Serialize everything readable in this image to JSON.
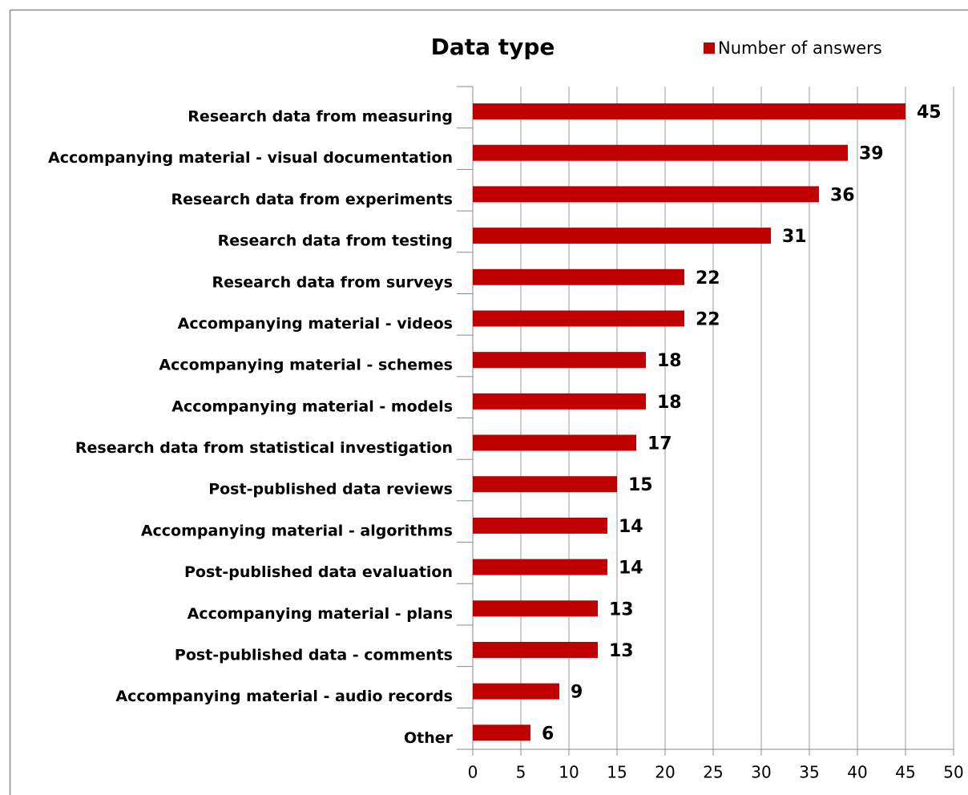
{
  "chart_data": {
    "type": "bar",
    "orientation": "horizontal",
    "title": "Data type",
    "categories": [
      "Research data from measuring",
      "Accompanying material - visual documentation",
      "Research data from experiments",
      "Research data from testing",
      "Research data from surveys",
      "Accompanying material - videos",
      "Accompanying material - schemes",
      "Accompanying material - models",
      "Research data from statistical investigation",
      "Post-published data reviews",
      "Accompanying material - algorithms",
      "Post-published data evaluation",
      "Accompanying material - plans",
      "Post-published data - comments",
      "Accompanying material - audio records",
      "Other"
    ],
    "series": [
      {
        "name": "Number of answers",
        "color": "#c00000",
        "values": [
          45,
          39,
          36,
          31,
          22,
          22,
          18,
          18,
          17,
          15,
          14,
          14,
          13,
          13,
          9,
          6
        ]
      }
    ],
    "xlim": [
      0,
      50
    ],
    "xticks": [
      0,
      5,
      10,
      15,
      20,
      25,
      30,
      35,
      40,
      45,
      50
    ],
    "grid": true,
    "legend": "top"
  }
}
